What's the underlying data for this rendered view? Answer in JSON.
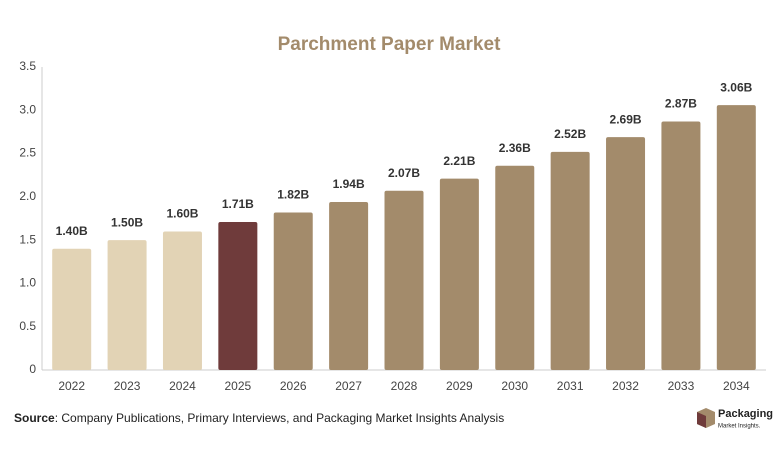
{
  "chart_data": {
    "type": "bar",
    "title": "Parchment Paper Market",
    "categories": [
      "2022",
      "2023",
      "2024",
      "2025",
      "2026",
      "2027",
      "2028",
      "2029",
      "2030",
      "2031",
      "2032",
      "2033",
      "2034"
    ],
    "values": [
      1.4,
      1.5,
      1.6,
      1.71,
      1.82,
      1.94,
      2.07,
      2.21,
      2.36,
      2.52,
      2.69,
      2.87,
      3.06
    ],
    "value_labels": [
      "1.40B",
      "1.50B",
      "1.60B",
      "1.71B",
      "1.82B",
      "1.94B",
      "2.07B",
      "2.21B",
      "2.36B",
      "2.52B",
      "2.69B",
      "2.87B",
      "3.06B"
    ],
    "colors": [
      "#e2d3b5",
      "#e2d3b5",
      "#e2d3b5",
      "#6f3b3b",
      "#a38b6b",
      "#a38b6b",
      "#a38b6b",
      "#a38b6b",
      "#a38b6b",
      "#a38b6b",
      "#a38b6b",
      "#a38b6b",
      "#a38b6b"
    ],
    "ylim": [
      0,
      3.5
    ],
    "yticks": [
      0,
      0.5,
      {
        "value": 1,
        "label": "1.0"
      },
      1.5,
      {
        "value": 2,
        "label": "2.0"
      },
      2.5,
      {
        "value": 3,
        "label": "3.0"
      },
      3.5
    ],
    "grid": false
  },
  "footer": {
    "source_label": "Source",
    "source_text": ": Company Publications, Primary Interviews, and Packaging Market Insights Analysis",
    "logo_title": "Packaging",
    "logo_subtitle": "Market Insights."
  }
}
